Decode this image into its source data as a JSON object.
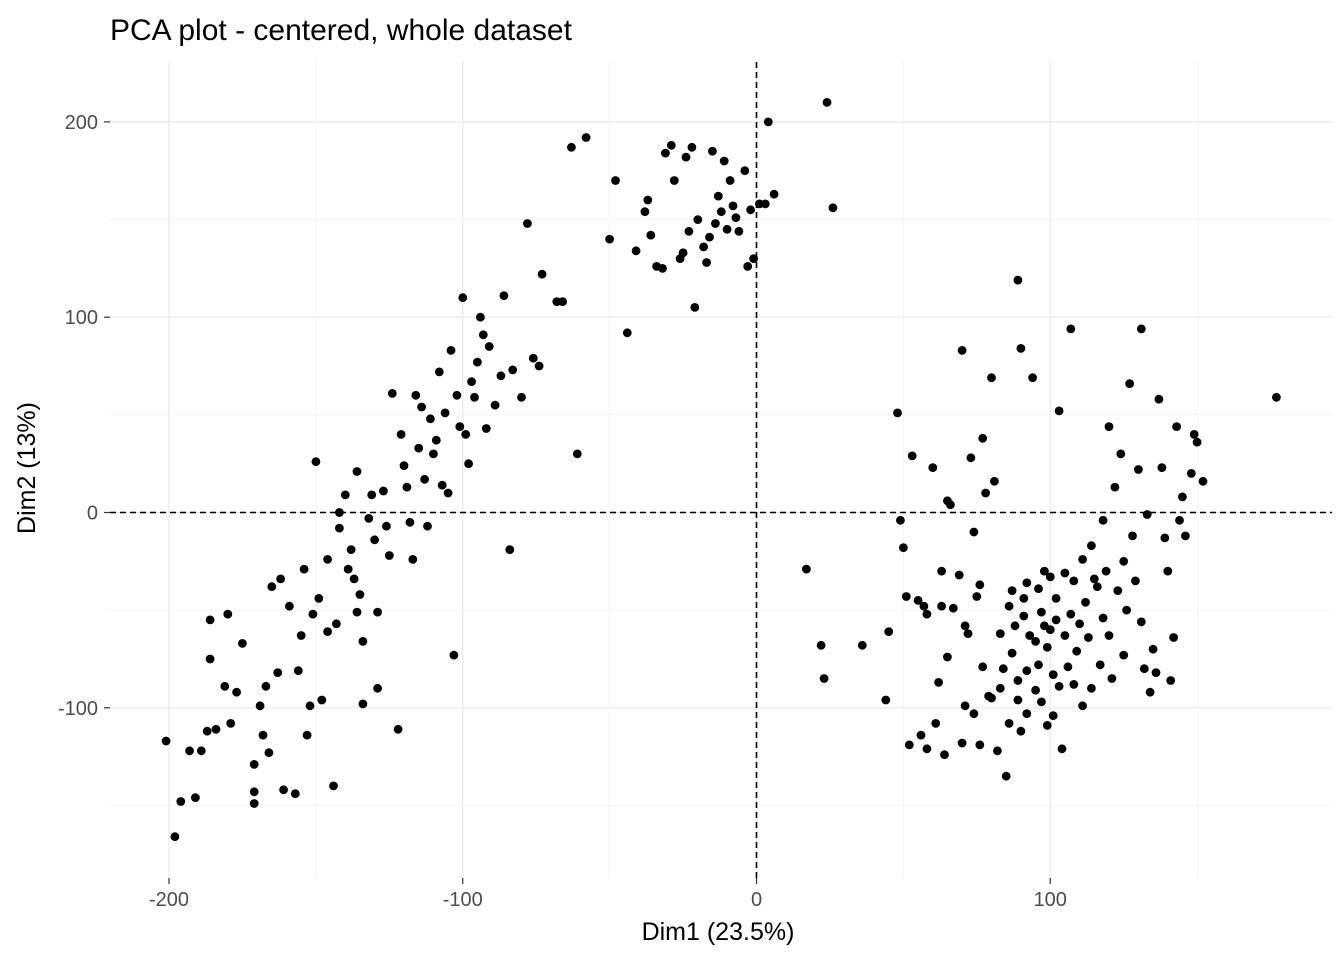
{
  "chart_data": {
    "type": "scatter",
    "title": "PCA plot - centered, whole dataset",
    "xlabel": "Dim1 (23.5%)",
    "ylabel": "Dim2 (13%)",
    "xlim": [
      -213,
      192
    ],
    "ylim": [
      -184,
      232
    ],
    "xticks": [
      -200,
      -100,
      0,
      100
    ],
    "xtick_labels": [
      "-200",
      "-100",
      "0",
      "100"
    ],
    "yticks": [
      -100,
      0,
      100,
      200
    ],
    "ytick_labels": [
      "-100",
      "0",
      "100",
      "200"
    ],
    "grid": true,
    "reference_lines": {
      "x": 0,
      "y": 0,
      "style": "dashed"
    },
    "point_color": "#000000",
    "points": [
      [
        -201,
        -117
      ],
      [
        -198,
        -166
      ],
      [
        -196,
        -148
      ],
      [
        -193,
        -122
      ],
      [
        -191,
        -146
      ],
      [
        -189,
        -122
      ],
      [
        -187,
        -112
      ],
      [
        -186,
        -75
      ],
      [
        -186,
        -55
      ],
      [
        -184,
        -111
      ],
      [
        -181,
        -89
      ],
      [
        -180,
        -52
      ],
      [
        -179,
        -108
      ],
      [
        -177,
        -92
      ],
      [
        -175,
        -67
      ],
      [
        -171,
        -143
      ],
      [
        -171,
        -149
      ],
      [
        -171,
        -129
      ],
      [
        -169,
        -99
      ],
      [
        -168,
        -114
      ],
      [
        -167,
        -89
      ],
      [
        -166,
        -123
      ],
      [
        -165,
        -38
      ],
      [
        -163,
        -82
      ],
      [
        -162,
        -34
      ],
      [
        -161,
        -142
      ],
      [
        -159,
        -48
      ],
      [
        -157,
        -144
      ],
      [
        -156,
        -81
      ],
      [
        -155,
        -63
      ],
      [
        -154,
        -29
      ],
      [
        -153,
        -114
      ],
      [
        -152,
        -99
      ],
      [
        -151,
        -52
      ],
      [
        -150,
        26
      ],
      [
        -149,
        -44
      ],
      [
        -148,
        -96
      ],
      [
        -146,
        -61
      ],
      [
        -146,
        -24
      ],
      [
        -144,
        -140
      ],
      [
        -143,
        -57
      ],
      [
        -142,
        -8
      ],
      [
        -142,
        0
      ],
      [
        -140,
        9
      ],
      [
        -139,
        -29
      ],
      [
        -138,
        -19
      ],
      [
        -137,
        -34
      ],
      [
        -136,
        21
      ],
      [
        -136,
        -51
      ],
      [
        -135,
        -42
      ],
      [
        -134,
        -66
      ],
      [
        -134,
        -98
      ],
      [
        -132,
        -3
      ],
      [
        -131,
        9
      ],
      [
        -130,
        -14
      ],
      [
        -129,
        -51
      ],
      [
        -129,
        -90
      ],
      [
        -127,
        11
      ],
      [
        -126,
        -7
      ],
      [
        -125,
        -22
      ],
      [
        -124,
        61
      ],
      [
        -122,
        -111
      ],
      [
        -121,
        40
      ],
      [
        -120,
        24
      ],
      [
        -119,
        13
      ],
      [
        -118,
        -5
      ],
      [
        -117,
        -24
      ],
      [
        -116,
        60
      ],
      [
        -115,
        33
      ],
      [
        -114,
        54
      ],
      [
        -113,
        17
      ],
      [
        -112,
        -7
      ],
      [
        -111,
        48
      ],
      [
        -110,
        30
      ],
      [
        -109,
        37
      ],
      [
        -108,
        72
      ],
      [
        -107,
        14
      ],
      [
        -106,
        51
      ],
      [
        -105,
        10
      ],
      [
        -104,
        83
      ],
      [
        -103,
        -73
      ],
      [
        -102,
        60
      ],
      [
        -101,
        44
      ],
      [
        -100,
        110
      ],
      [
        -99,
        40
      ],
      [
        -98,
        25
      ],
      [
        -97,
        67
      ],
      [
        -96,
        59
      ],
      [
        -95,
        77
      ],
      [
        -94,
        100
      ],
      [
        -93,
        91
      ],
      [
        -92,
        43
      ],
      [
        -91,
        85
      ],
      [
        -89,
        55
      ],
      [
        -87,
        70
      ],
      [
        -86,
        111
      ],
      [
        -84,
        -19
      ],
      [
        -83,
        73
      ],
      [
        -80,
        59
      ],
      [
        -78,
        148
      ],
      [
        -76,
        79
      ],
      [
        -74,
        75
      ],
      [
        -73,
        122
      ],
      [
        -68,
        108
      ],
      [
        -66,
        108
      ],
      [
        -63,
        187
      ],
      [
        -61,
        30
      ],
      [
        -58,
        192
      ],
      [
        -50,
        140
      ],
      [
        -48,
        170
      ],
      [
        -44,
        92
      ],
      [
        -41,
        134
      ],
      [
        -38,
        154
      ],
      [
        -37,
        160
      ],
      [
        -36,
        142
      ],
      [
        -34,
        126
      ],
      [
        -32,
        125
      ],
      [
        -31,
        184
      ],
      [
        -29,
        188
      ],
      [
        -28,
        170
      ],
      [
        -26,
        130
      ],
      [
        -25,
        133
      ],
      [
        -24,
        182
      ],
      [
        -23,
        144
      ],
      [
        -22,
        187
      ],
      [
        -21,
        105
      ],
      [
        -20,
        150
      ],
      [
        -18,
        136
      ],
      [
        -17,
        128
      ],
      [
        -16,
        141
      ],
      [
        -15,
        185
      ],
      [
        -14,
        148
      ],
      [
        -13,
        162
      ],
      [
        -12,
        154
      ],
      [
        -11,
        180
      ],
      [
        -10,
        145
      ],
      [
        -9,
        170
      ],
      [
        -8,
        157
      ],
      [
        -7,
        151
      ],
      [
        -6,
        144
      ],
      [
        -4,
        175
      ],
      [
        -3,
        126
      ],
      [
        -2,
        155
      ],
      [
        -1,
        130
      ],
      [
        1,
        158
      ],
      [
        3,
        158
      ],
      [
        4,
        200
      ],
      [
        6,
        163
      ],
      [
        17,
        -29
      ],
      [
        22,
        -68
      ],
      [
        23,
        -85
      ],
      [
        24,
        210
      ],
      [
        26,
        156
      ],
      [
        36,
        -68
      ],
      [
        44,
        -96
      ],
      [
        45,
        -61
      ],
      [
        48,
        51
      ],
      [
        49,
        -4
      ],
      [
        50,
        -18
      ],
      [
        51,
        -43
      ],
      [
        52,
        -119
      ],
      [
        53,
        29
      ],
      [
        55,
        -45
      ],
      [
        56,
        -114
      ],
      [
        57,
        -48
      ],
      [
        58,
        -52
      ],
      [
        58,
        -121
      ],
      [
        60,
        23
      ],
      [
        61,
        -108
      ],
      [
        62,
        -87
      ],
      [
        63,
        -30
      ],
      [
        63,
        -48
      ],
      [
        64,
        -124
      ],
      [
        65,
        -74
      ],
      [
        65,
        6
      ],
      [
        66,
        4
      ],
      [
        67,
        -49
      ],
      [
        69,
        -32
      ],
      [
        70,
        -118
      ],
      [
        70,
        83
      ],
      [
        71,
        -58
      ],
      [
        71,
        -99
      ],
      [
        72,
        -62
      ],
      [
        73,
        28
      ],
      [
        74,
        -10
      ],
      [
        74,
        -103
      ],
      [
        75,
        -43
      ],
      [
        76,
        -37
      ],
      [
        76,
        -119
      ],
      [
        77,
        38
      ],
      [
        77,
        -79
      ],
      [
        78,
        10
      ],
      [
        79,
        -94
      ],
      [
        80,
        69
      ],
      [
        80,
        -95
      ],
      [
        81,
        16
      ],
      [
        82,
        -122
      ],
      [
        83,
        -62
      ],
      [
        83,
        -90
      ],
      [
        84,
        -80
      ],
      [
        85,
        -135
      ],
      [
        86,
        -48
      ],
      [
        86,
        -108
      ],
      [
        87,
        -72
      ],
      [
        87,
        -40
      ],
      [
        88,
        -58
      ],
      [
        89,
        -86
      ],
      [
        89,
        -96
      ],
      [
        89,
        119
      ],
      [
        90,
        84
      ],
      [
        90,
        -112
      ],
      [
        91,
        -44
      ],
      [
        91,
        -53
      ],
      [
        92,
        -36
      ],
      [
        92,
        -81
      ],
      [
        92,
        -103
      ],
      [
        93,
        -63
      ],
      [
        94,
        69
      ],
      [
        95,
        -66
      ],
      [
        95,
        -91
      ],
      [
        96,
        -39
      ],
      [
        96,
        -78
      ],
      [
        97,
        -51
      ],
      [
        97,
        -97
      ],
      [
        98,
        -30
      ],
      [
        98,
        -58
      ],
      [
        99,
        -69
      ],
      [
        99,
        -109
      ],
      [
        100,
        -33
      ],
      [
        100,
        -60
      ],
      [
        101,
        -83
      ],
      [
        101,
        -104
      ],
      [
        102,
        -44
      ],
      [
        102,
        -55
      ],
      [
        103,
        52
      ],
      [
        103,
        -89
      ],
      [
        104,
        -121
      ],
      [
        105,
        -31
      ],
      [
        105,
        -63
      ],
      [
        106,
        -79
      ],
      [
        107,
        94
      ],
      [
        107,
        -52
      ],
      [
        108,
        -35
      ],
      [
        108,
        -88
      ],
      [
        109,
        -71
      ],
      [
        110,
        -57
      ],
      [
        111,
        -99
      ],
      [
        111,
        -24
      ],
      [
        112,
        -46
      ],
      [
        113,
        -64
      ],
      [
        114,
        -90
      ],
      [
        114,
        -17
      ],
      [
        115,
        -34
      ],
      [
        116,
        -38
      ],
      [
        117,
        -78
      ],
      [
        118,
        -54
      ],
      [
        118,
        -4
      ],
      [
        119,
        -30
      ],
      [
        120,
        44
      ],
      [
        120,
        -63
      ],
      [
        121,
        -85
      ],
      [
        122,
        13
      ],
      [
        123,
        -40
      ],
      [
        124,
        30
      ],
      [
        125,
        -25
      ],
      [
        125,
        -73
      ],
      [
        126,
        -50
      ],
      [
        127,
        66
      ],
      [
        128,
        -12
      ],
      [
        129,
        -35
      ],
      [
        130,
        22
      ],
      [
        131,
        -56
      ],
      [
        131,
        94
      ],
      [
        132,
        -80
      ],
      [
        133,
        -1
      ],
      [
        134,
        -92
      ],
      [
        135,
        -70
      ],
      [
        136,
        -82
      ],
      [
        137,
        58
      ],
      [
        138,
        23
      ],
      [
        139,
        -13
      ],
      [
        140,
        -30
      ],
      [
        141,
        -86
      ],
      [
        142,
        -64
      ],
      [
        143,
        44
      ],
      [
        144,
        -4
      ],
      [
        145,
        8
      ],
      [
        146,
        -12
      ],
      [
        148,
        20
      ],
      [
        149,
        40
      ],
      [
        150,
        36
      ],
      [
        152,
        16
      ],
      [
        177,
        59
      ]
    ]
  }
}
